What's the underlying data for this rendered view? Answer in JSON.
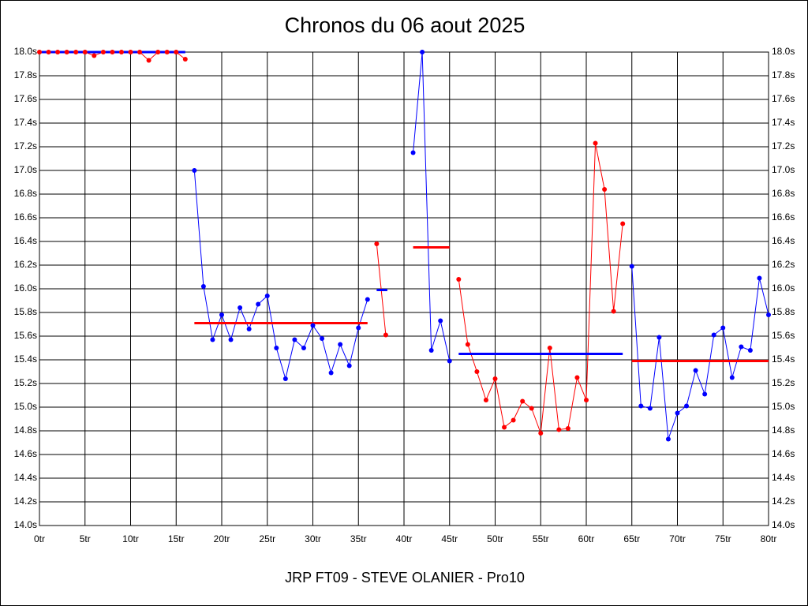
{
  "chart_data": {
    "type": "line",
    "title": "Chronos du 06 aout 2025",
    "footer": "JRP FT09 - STEVE OLANIER - Pro10",
    "xlim": [
      0,
      80
    ],
    "ylim": [
      14.0,
      18.0
    ],
    "grid": true,
    "xticks": [
      {
        "value": 0,
        "label": "0tr"
      },
      {
        "value": 5,
        "label": "5tr"
      },
      {
        "value": 10,
        "label": "10tr"
      },
      {
        "value": 15,
        "label": "15tr"
      },
      {
        "value": 20,
        "label": "20tr"
      },
      {
        "value": 25,
        "label": "25tr"
      },
      {
        "value": 30,
        "label": "30tr"
      },
      {
        "value": 35,
        "label": "35tr"
      },
      {
        "value": 40,
        "label": "40tr"
      },
      {
        "value": 45,
        "label": "45tr"
      },
      {
        "value": 50,
        "label": "50tr"
      },
      {
        "value": 55,
        "label": "55tr"
      },
      {
        "value": 60,
        "label": "60tr"
      },
      {
        "value": 65,
        "label": "65tr"
      },
      {
        "value": 70,
        "label": "70tr"
      },
      {
        "value": 75,
        "label": "75tr"
      },
      {
        "value": 80,
        "label": "80tr"
      }
    ],
    "yticks": [
      {
        "value": 14.0,
        "label": "14.0s"
      },
      {
        "value": 14.2,
        "label": "14.2s"
      },
      {
        "value": 14.4,
        "label": "14.4s"
      },
      {
        "value": 14.6,
        "label": "14.6s"
      },
      {
        "value": 14.8,
        "label": "14.8s"
      },
      {
        "value": 15.0,
        "label": "15.0s"
      },
      {
        "value": 15.2,
        "label": "15.2s"
      },
      {
        "value": 15.4,
        "label": "15.4s"
      },
      {
        "value": 15.6,
        "label": "15.6s"
      },
      {
        "value": 15.8,
        "label": "15.8s"
      },
      {
        "value": 16.0,
        "label": "16.0s"
      },
      {
        "value": 16.2,
        "label": "16.2s"
      },
      {
        "value": 16.4,
        "label": "16.4s"
      },
      {
        "value": 16.6,
        "label": "16.6s"
      },
      {
        "value": 16.8,
        "label": "16.8s"
      },
      {
        "value": 17.0,
        "label": "17.0s"
      },
      {
        "value": 17.2,
        "label": "17.2s"
      },
      {
        "value": 17.4,
        "label": "17.4s"
      },
      {
        "value": 17.6,
        "label": "17.6s"
      },
      {
        "value": 17.8,
        "label": "17.8s"
      },
      {
        "value": 18.0,
        "label": "18.0s"
      }
    ],
    "series": [
      {
        "color": "#ff0000",
        "average_color": "#0000ff",
        "average": 18.0,
        "x": [
          0,
          1,
          2,
          3,
          4,
          5,
          6,
          7,
          8,
          9,
          10,
          11,
          12,
          13,
          14,
          15,
          16
        ],
        "values": [
          18.0,
          18.0,
          18.0,
          18.0,
          18.0,
          18.0,
          17.97,
          18.0,
          18.0,
          18.0,
          18.0,
          18.0,
          17.93,
          18.0,
          18.0,
          18.0,
          17.94
        ]
      },
      {
        "color": "#0000ff",
        "average_color": "#ff0000",
        "average": 15.71,
        "x": [
          17,
          18,
          19,
          20,
          21,
          22,
          23,
          24,
          25,
          26,
          27,
          28,
          29,
          30,
          31,
          32,
          33,
          34,
          35,
          36
        ],
        "values": [
          17.0,
          16.02,
          15.57,
          15.78,
          15.57,
          15.84,
          15.66,
          15.87,
          15.94,
          15.5,
          15.24,
          15.57,
          15.5,
          15.69,
          15.58,
          15.29,
          15.53,
          15.35,
          15.67,
          15.91
        ]
      },
      {
        "color": "#ff0000",
        "average_color": "#0000ff",
        "average": 15.99,
        "x": [
          37,
          38
        ],
        "values": [
          16.38,
          15.61
        ]
      },
      {
        "color": "#0000ff",
        "average_color": "#ff0000",
        "average": 16.35,
        "x": [
          41,
          42,
          43,
          44,
          45
        ],
        "values": [
          17.15,
          18.0,
          15.48,
          15.73,
          15.39
        ]
      },
      {
        "color": "#ff0000",
        "average_color": "#0000ff",
        "average": 15.45,
        "x": [
          46,
          47,
          48,
          49,
          50,
          51,
          52,
          53,
          54,
          55,
          56,
          57,
          58,
          59,
          60,
          61,
          62,
          63,
          64
        ],
        "values": [
          16.08,
          15.53,
          15.3,
          15.06,
          15.24,
          14.83,
          14.89,
          15.05,
          14.99,
          14.78,
          15.5,
          14.81,
          14.82,
          15.25,
          15.06,
          17.23,
          16.84,
          15.81,
          16.55
        ]
      },
      {
        "color": "#0000ff",
        "average_color": "#ff0000",
        "average": 15.39,
        "x": [
          65,
          66,
          67,
          68,
          69,
          70,
          71,
          72,
          73,
          74,
          75,
          76,
          77,
          78,
          79,
          80
        ],
        "values": [
          16.19,
          15.01,
          14.99,
          15.59,
          14.73,
          14.95,
          15.01,
          15.31,
          15.11,
          15.61,
          15.67,
          15.25,
          15.51,
          15.48,
          16.09,
          15.78
        ]
      }
    ]
  }
}
